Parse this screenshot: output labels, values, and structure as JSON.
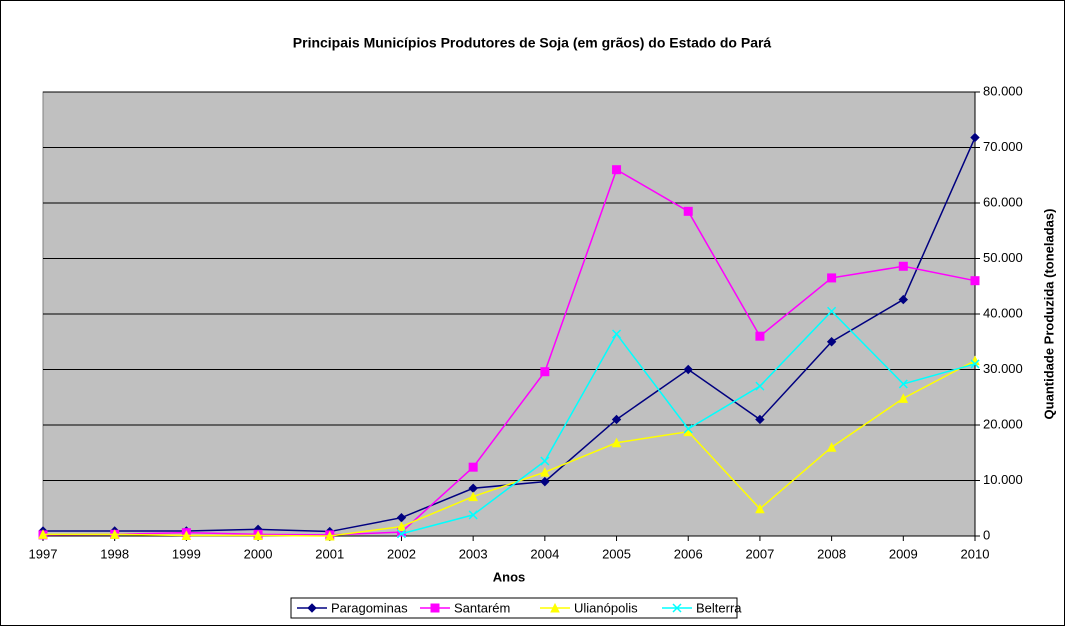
{
  "chart_data": {
    "type": "line",
    "title": "Principais Municípios Produtores de Soja (em grãos) do Estado do Pará",
    "x_label": "Anos",
    "y_label": "Quantidade Produzida (toneladas)",
    "categories": [
      "1997",
      "1998",
      "1999",
      "2000",
      "2001",
      "2002",
      "2003",
      "2004",
      "2005",
      "2006",
      "2007",
      "2008",
      "2009",
      "2010"
    ],
    "series": [
      {
        "name": "Paragominas",
        "color": "#000080",
        "marker": "diamond",
        "values": [
          900,
          900,
          900,
          1200,
          800,
          3300,
          8600,
          9800,
          21000,
          30000,
          21000,
          35000,
          42600,
          71800
        ]
      },
      {
        "name": "Santarém",
        "color": "#ff00ff",
        "marker": "square",
        "values": [
          200,
          300,
          600,
          300,
          200,
          700,
          12400,
          29600,
          66000,
          58500,
          36000,
          46500,
          48600,
          46000
        ]
      },
      {
        "name": "Ulianópolis",
        "color": "#ffff00",
        "marker": "triangle",
        "values": [
          300,
          300,
          100,
          100,
          0,
          1700,
          7100,
          11500,
          16800,
          18800,
          4900,
          16000,
          24800,
          31600
        ]
      },
      {
        "name": "Belterra",
        "color": "#00ffff",
        "marker": "x",
        "values": [
          null,
          null,
          null,
          null,
          null,
          400,
          3800,
          13500,
          36400,
          19300,
          27000,
          40500,
          27400,
          31000
        ]
      }
    ],
    "ylim": [
      0,
      80000
    ],
    "yticks": [
      0,
      {
        "value": 10000,
        "label": "10.000"
      },
      {
        "value": 20000,
        "label": "20.000"
      },
      {
        "value": 30000,
        "label": "30.000"
      },
      {
        "value": 40000,
        "label": "40.000"
      },
      {
        "value": 50000,
        "label": "50.000"
      },
      {
        "value": 60000,
        "label": "60.000"
      },
      {
        "value": 70000,
        "label": "70.000"
      },
      {
        "value": 80000,
        "label": "80.000"
      }
    ],
    "y_axis_side": "right",
    "grid": true,
    "legend": "bottom"
  }
}
